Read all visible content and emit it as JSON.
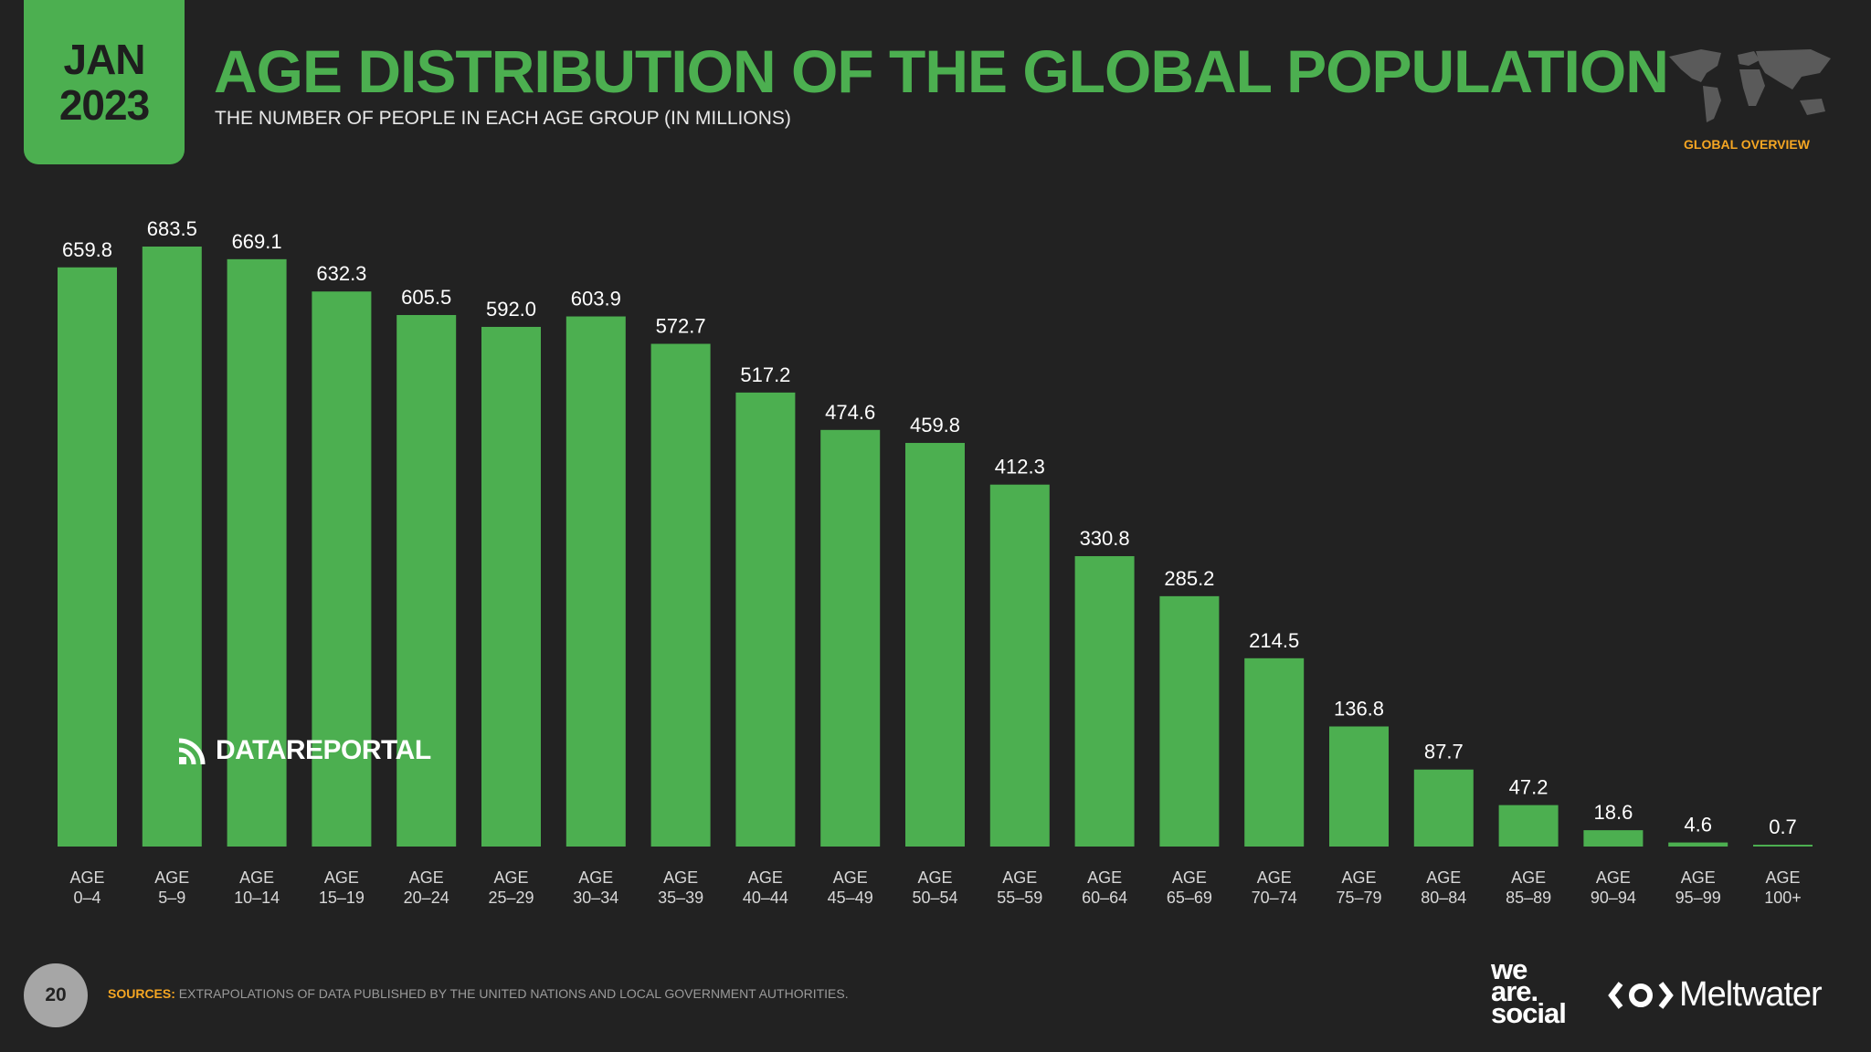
{
  "header": {
    "date_month": "JAN",
    "date_year": "2023",
    "title": "AGE DISTRIBUTION OF THE GLOBAL POPULATION",
    "subtitle": "THE NUMBER OF PEOPLE IN EACH AGE GROUP (IN MILLIONS)",
    "section_label": "GLOBAL OVERVIEW",
    "section_icon": "world-map-icon"
  },
  "watermark": "DATAREPORTAL",
  "footer": {
    "page_number": "20",
    "sources_label": "SOURCES:",
    "sources_text": "EXTRAPOLATIONS OF DATA PUBLISHED BY THE UNITED NATIONS AND LOCAL GOVERNMENT AUTHORITIES.",
    "logo_1": "we are. social",
    "logo_2": "Meltwater"
  },
  "colors": {
    "accent": "#4caf50",
    "background": "#222222",
    "highlight": "#f5a623"
  },
  "chart_data": {
    "type": "bar",
    "title": "AGE DISTRIBUTION OF THE GLOBAL POPULATION",
    "categories": [
      [
        "AGE",
        "0–4"
      ],
      [
        "AGE",
        "5–9"
      ],
      [
        "AGE",
        "10–14"
      ],
      [
        "AGE",
        "15–19"
      ],
      [
        "AGE",
        "20–24"
      ],
      [
        "AGE",
        "25–29"
      ],
      [
        "AGE",
        "30–34"
      ],
      [
        "AGE",
        "35–39"
      ],
      [
        "AGE",
        "40–44"
      ],
      [
        "AGE",
        "45–49"
      ],
      [
        "AGE",
        "50–54"
      ],
      [
        "AGE",
        "55–59"
      ],
      [
        "AGE",
        "60–64"
      ],
      [
        "AGE",
        "65–69"
      ],
      [
        "AGE",
        "70–74"
      ],
      [
        "AGE",
        "75–79"
      ],
      [
        "AGE",
        "80–84"
      ],
      [
        "AGE",
        "85–89"
      ],
      [
        "AGE",
        "90–94"
      ],
      [
        "AGE",
        "95–99"
      ],
      [
        "AGE",
        "100+"
      ]
    ],
    "values": [
      659.8,
      683.5,
      669.1,
      632.3,
      605.5,
      592.0,
      603.9,
      572.7,
      517.2,
      474.6,
      459.8,
      412.3,
      330.8,
      285.2,
      214.5,
      136.8,
      87.7,
      47.2,
      18.6,
      4.6,
      0.7
    ],
    "value_labels": [
      "659.8",
      "683.5",
      "669.1",
      "632.3",
      "605.5",
      "592.0",
      "603.9",
      "572.7",
      "517.2",
      "474.6",
      "459.8",
      "412.3",
      "330.8",
      "285.2",
      "214.5",
      "136.8",
      "87.7",
      "47.2",
      "18.6",
      "4.6",
      "0.7"
    ],
    "ylim": [
      0,
      683.5
    ],
    "grid": false,
    "legend": "none",
    "bar_color": "#4caf50"
  }
}
